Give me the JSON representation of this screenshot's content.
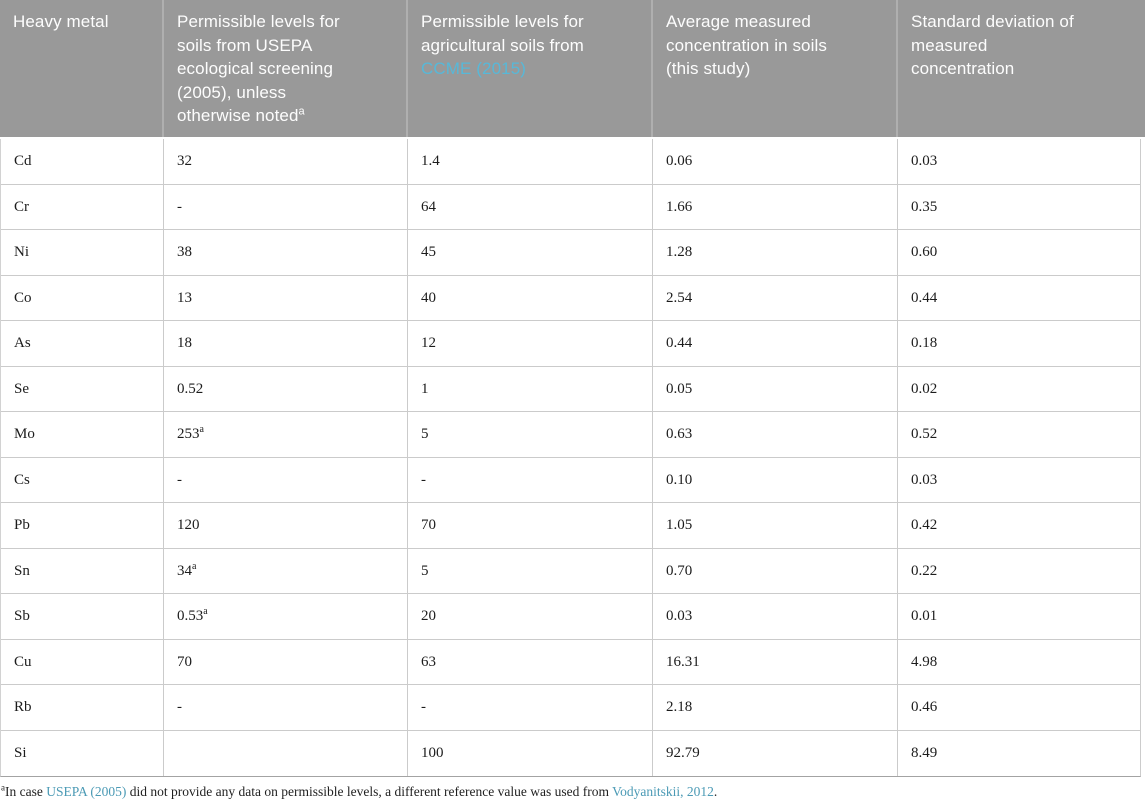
{
  "colors": {
    "header_bg": "#999999",
    "header_text": "#fdfdfd",
    "header_link": "#57b8d8",
    "grid_line": "#cbcbcb",
    "body_text": "#1c1c1c",
    "footnote_link": "#4b9ab5"
  },
  "header": {
    "col1": "Heavy metal",
    "col2_text": "Permissible levels for soils from USEPA ecological screening (2005), unless otherwise noted",
    "col2_sup": "a",
    "col3_text": "Permissible levels for agricultural soils from ",
    "col3_link": "CCME (2015)",
    "col4": "Average measured concentration in soils (this study)",
    "col5": "Standard deviation of measured concentration"
  },
  "rows": [
    {
      "metal": "Cd",
      "usepa": "32",
      "usepa_sup": "",
      "ccme": "1.4",
      "avg": "0.06",
      "sd": "0.03"
    },
    {
      "metal": "Cr",
      "usepa": "-",
      "usepa_sup": "",
      "ccme": "64",
      "avg": "1.66",
      "sd": "0.35"
    },
    {
      "metal": "Ni",
      "usepa": "38",
      "usepa_sup": "",
      "ccme": "45",
      "avg": "1.28",
      "sd": "0.60"
    },
    {
      "metal": "Co",
      "usepa": "13",
      "usepa_sup": "",
      "ccme": "40",
      "avg": "2.54",
      "sd": "0.44"
    },
    {
      "metal": "As",
      "usepa": "18",
      "usepa_sup": "",
      "ccme": "12",
      "avg": "0.44",
      "sd": "0.18"
    },
    {
      "metal": "Se",
      "usepa": "0.52",
      "usepa_sup": "",
      "ccme": "1",
      "avg": "0.05",
      "sd": "0.02"
    },
    {
      "metal": "Mo",
      "usepa": "253",
      "usepa_sup": "a",
      "ccme": "5",
      "avg": "0.63",
      "sd": "0.52"
    },
    {
      "metal": "Cs",
      "usepa": "-",
      "usepa_sup": "",
      "ccme": "-",
      "avg": "0.10",
      "sd": "0.03"
    },
    {
      "metal": "Pb",
      "usepa": "120",
      "usepa_sup": "",
      "ccme": "70",
      "avg": "1.05",
      "sd": "0.42"
    },
    {
      "metal": "Sn",
      "usepa": "34",
      "usepa_sup": "a",
      "ccme": "5",
      "avg": "0.70",
      "sd": "0.22"
    },
    {
      "metal": "Sb",
      "usepa": "0.53",
      "usepa_sup": "a",
      "ccme": "20",
      "avg": "0.03",
      "sd": "0.01"
    },
    {
      "metal": "Cu",
      "usepa": "70",
      "usepa_sup": "",
      "ccme": "63",
      "avg": "16.31",
      "sd": "4.98"
    },
    {
      "metal": "Rb",
      "usepa": "-",
      "usepa_sup": "",
      "ccme": "-",
      "avg": "2.18",
      "sd": "0.46"
    },
    {
      "metal": "Si",
      "usepa": "",
      "usepa_sup": "",
      "ccme": "100",
      "avg": "92.79",
      "sd": "8.49"
    }
  ],
  "footnote": {
    "sup": "a",
    "part1": "In case ",
    "link1": "USEPA (2005)",
    "part2": " did not provide any data on permissible levels, a different reference value was used from ",
    "link2": "Vodyanitskii, 2012",
    "part3": "."
  }
}
